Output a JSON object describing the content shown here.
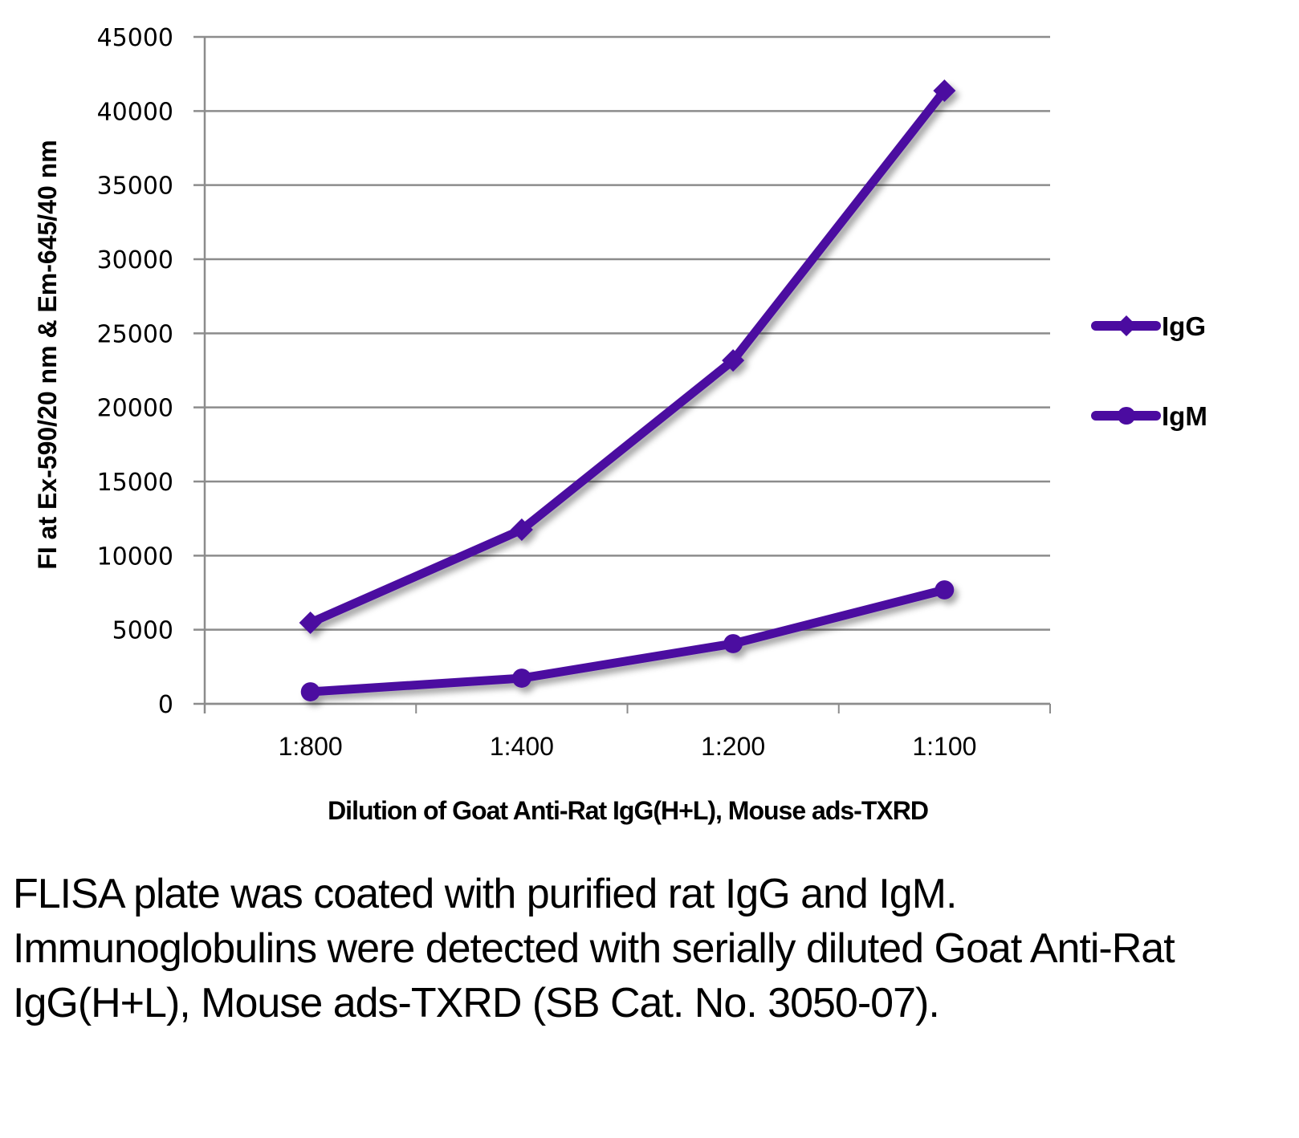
{
  "chart_data": {
    "type": "line",
    "title": "",
    "xlabel": "Dilution of Goat Anti-Rat IgG(H+L), Mouse ads-TXRD",
    "ylabel": "FI at Ex-590/20 nm & Em-645/40 nm",
    "categories": [
      "1:800",
      "1:400",
      "1:200",
      "1:100"
    ],
    "ylim": [
      0,
      45000
    ],
    "yticks": [
      0,
      5000,
      10000,
      15000,
      20000,
      25000,
      30000,
      35000,
      40000,
      45000
    ],
    "ytick_labels": [
      "0",
      "5000",
      "10000",
      "15000",
      "20000",
      "25000",
      "30000",
      "35000",
      "40000",
      "45000"
    ],
    "grid": true,
    "legend_position": "right",
    "series": [
      {
        "name": "IgG",
        "marker": "diamond",
        "color": "#4B0BA0",
        "values": [
          5470,
          11750,
          23170,
          41370
        ]
      },
      {
        "name": "IgM",
        "marker": "circle",
        "color": "#4B0BA0",
        "values": [
          810,
          1730,
          4060,
          7690
        ]
      }
    ]
  },
  "caption": "FLISA plate was coated with purified rat IgG and IgM.  Immunoglobulins were detected with serially diluted Goat Anti-Rat IgG(H+L), Mouse ads-TXRD (SB Cat. No. 3050-07).",
  "colors": {
    "series": "#4B0BA0",
    "grid": "#8c8c8c"
  }
}
